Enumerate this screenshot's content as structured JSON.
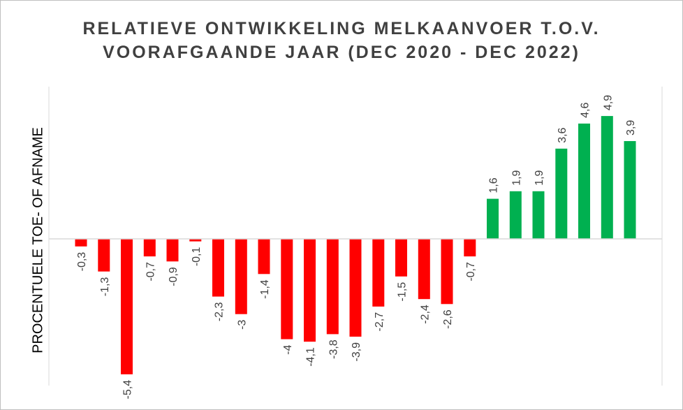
{
  "chart_data": {
    "type": "bar",
    "title_line1": "RELATIEVE ONTWIKKELING MELKAANVOER T.O.V.",
    "title_line2": "VOORAFGAANDE JAAR (DEC 2020 - DEC 2022)",
    "xlabel": "",
    "ylabel": "PROCENTUELE TOE-  OF AFNAME",
    "values": [
      -0.3,
      -1.3,
      -5.4,
      -0.7,
      -0.9,
      -0.1,
      -2.3,
      -3,
      -1.4,
      -4,
      -4.1,
      -3.8,
      -3.9,
      -2.7,
      -1.5,
      -2.4,
      -2.6,
      -0.7,
      1.6,
      1.9,
      1.9,
      3.6,
      4.6,
      4.9,
      3.9
    ],
    "labels": [
      "-0,3",
      "-1,3",
      "-5,4",
      "-0,7",
      "-0,9",
      "-0,1",
      "-2,3",
      "-3",
      "-1,4",
      "-4",
      "-4,1",
      "-3,8",
      "-3,9",
      "-2,7",
      "-1,5",
      "-2,4",
      "-2,6",
      "-0,7",
      "1,6",
      "1,9",
      "1,9",
      "3,6",
      "4,6",
      "4,9",
      "3,9"
    ],
    "ylim": [
      -5.8,
      6.0
    ],
    "grid": false,
    "colors": {
      "negative": "#ff0000",
      "positive": "#00b050",
      "axis": "#d9d9d9"
    }
  }
}
